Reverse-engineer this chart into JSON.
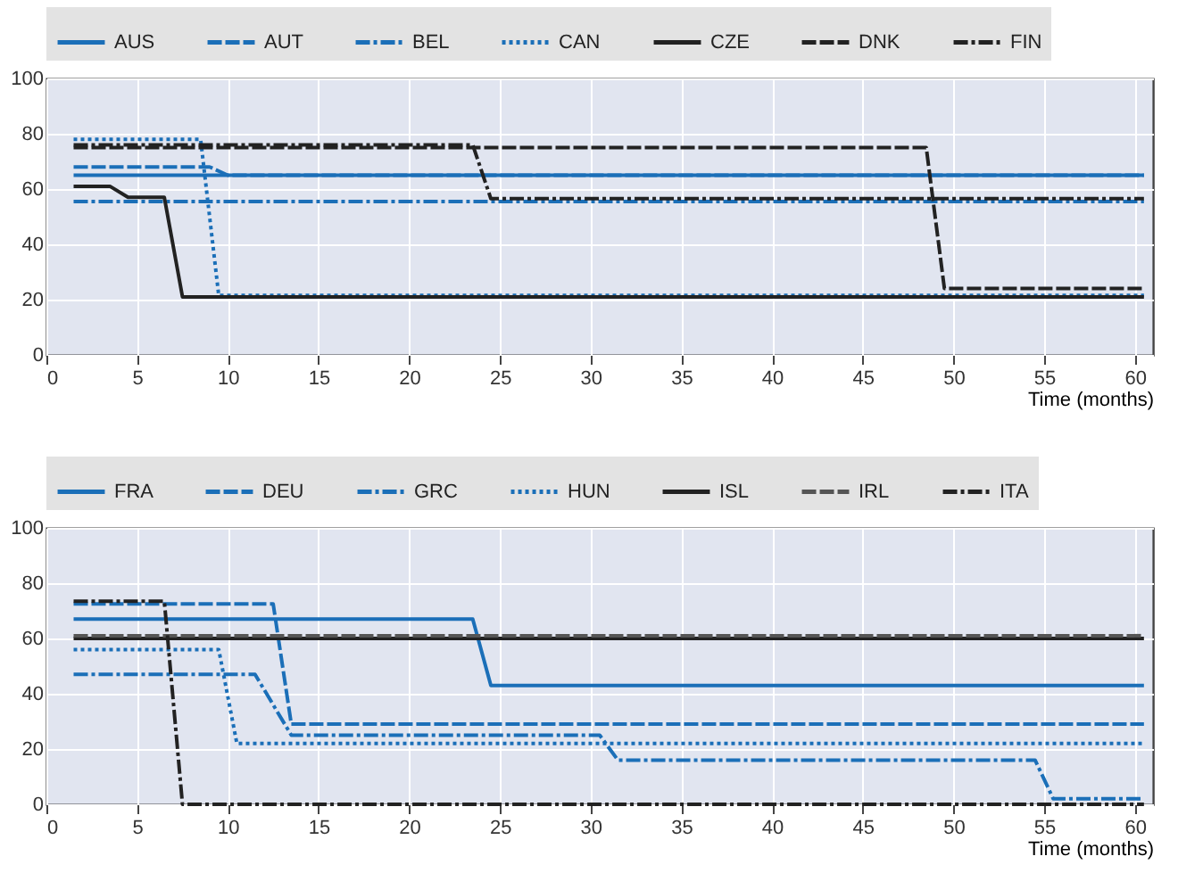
{
  "chart_data": [
    {
      "type": "line",
      "xlabel": "Time (months)",
      "xlim": [
        0,
        61
      ],
      "xticks": [
        0,
        5,
        10,
        15,
        20,
        25,
        30,
        35,
        40,
        45,
        50,
        55,
        60
      ],
      "ylim": [
        0,
        100
      ],
      "yticks": [
        0,
        20,
        40,
        60,
        80,
        100
      ],
      "grid": true,
      "legend": "top",
      "series": [
        {
          "name": "AUS",
          "color": "#1b6fb8",
          "line_style": "solid",
          "x": [
            1.5,
            60.5
          ],
          "values": [
            65,
            65
          ]
        },
        {
          "name": "AUT",
          "color": "#1b6fb8",
          "line_style": "dashed",
          "x": [
            1.5,
            9,
            10,
            60.5
          ],
          "values": [
            68,
            68,
            65,
            65
          ]
        },
        {
          "name": "BEL",
          "color": "#1b6fb8",
          "line_style": "dashdot",
          "x": [
            1.5,
            60.5
          ],
          "values": [
            55.5,
            55.5
          ]
        },
        {
          "name": "CAN",
          "color": "#1b6fb8",
          "line_style": "dotted",
          "x": [
            1.5,
            8.5,
            9.5,
            60.5
          ],
          "values": [
            78,
            78,
            21.5,
            21.5
          ]
        },
        {
          "name": "CZE",
          "color": "#222222",
          "line_style": "solid",
          "x": [
            1.5,
            3.5,
            4.5,
            6.5,
            7.5,
            60.5
          ],
          "values": [
            61,
            61,
            57,
            57,
            21,
            21
          ]
        },
        {
          "name": "DNK",
          "color": "#222222",
          "line_style": "dashed",
          "x": [
            1.5,
            48.5,
            49.5,
            60.5
          ],
          "values": [
            75,
            75,
            24,
            24
          ]
        },
        {
          "name": "FIN",
          "color": "#222222",
          "line_style": "dashdot",
          "x": [
            1.5,
            23.5,
            24.5,
            60.5
          ],
          "values": [
            76,
            76,
            56.5,
            56.5
          ]
        }
      ]
    },
    {
      "type": "line",
      "xlabel": "Time (months)",
      "xlim": [
        0,
        61
      ],
      "xticks": [
        0,
        5,
        10,
        15,
        20,
        25,
        30,
        35,
        40,
        45,
        50,
        55,
        60
      ],
      "ylim": [
        0,
        100
      ],
      "yticks": [
        0,
        20,
        40,
        60,
        80,
        100
      ],
      "grid": true,
      "legend": "top",
      "series": [
        {
          "name": "FRA",
          "color": "#1b6fb8",
          "line_style": "solid",
          "x": [
            1.5,
            23.5,
            24.5,
            60.5
          ],
          "values": [
            67,
            67,
            43,
            43
          ]
        },
        {
          "name": "DEU",
          "color": "#1b6fb8",
          "line_style": "dashed",
          "x": [
            1.5,
            12.5,
            13.5,
            60.5
          ],
          "values": [
            72.5,
            72.5,
            29,
            29
          ]
        },
        {
          "name": "GRC",
          "color": "#1b6fb8",
          "line_style": "dashdot",
          "x": [
            1.5,
            11.5,
            13.5,
            30.5,
            31.5,
            54.5,
            55.5,
            60.5
          ],
          "values": [
            47,
            47,
            25,
            25,
            16,
            16,
            2,
            2
          ]
        },
        {
          "name": "HUN",
          "color": "#1b6fb8",
          "line_style": "dotted",
          "x": [
            1.5,
            9.5,
            10.5,
            60.5
          ],
          "values": [
            56,
            56,
            22,
            22
          ]
        },
        {
          "name": "ISL",
          "color": "#222222",
          "line_style": "solid",
          "x": [
            1.5,
            60.5
          ],
          "values": [
            60,
            60
          ]
        },
        {
          "name": "IRL",
          "color": "#555555",
          "line_style": "dashed",
          "x": [
            1.5,
            60.5
          ],
          "values": [
            61,
            61
          ]
        },
        {
          "name": "ITA",
          "color": "#222222",
          "line_style": "dashdot",
          "x": [
            1.5,
            6.5,
            7.5,
            60.5
          ],
          "values": [
            73.5,
            73.5,
            0,
            0
          ]
        }
      ]
    }
  ]
}
